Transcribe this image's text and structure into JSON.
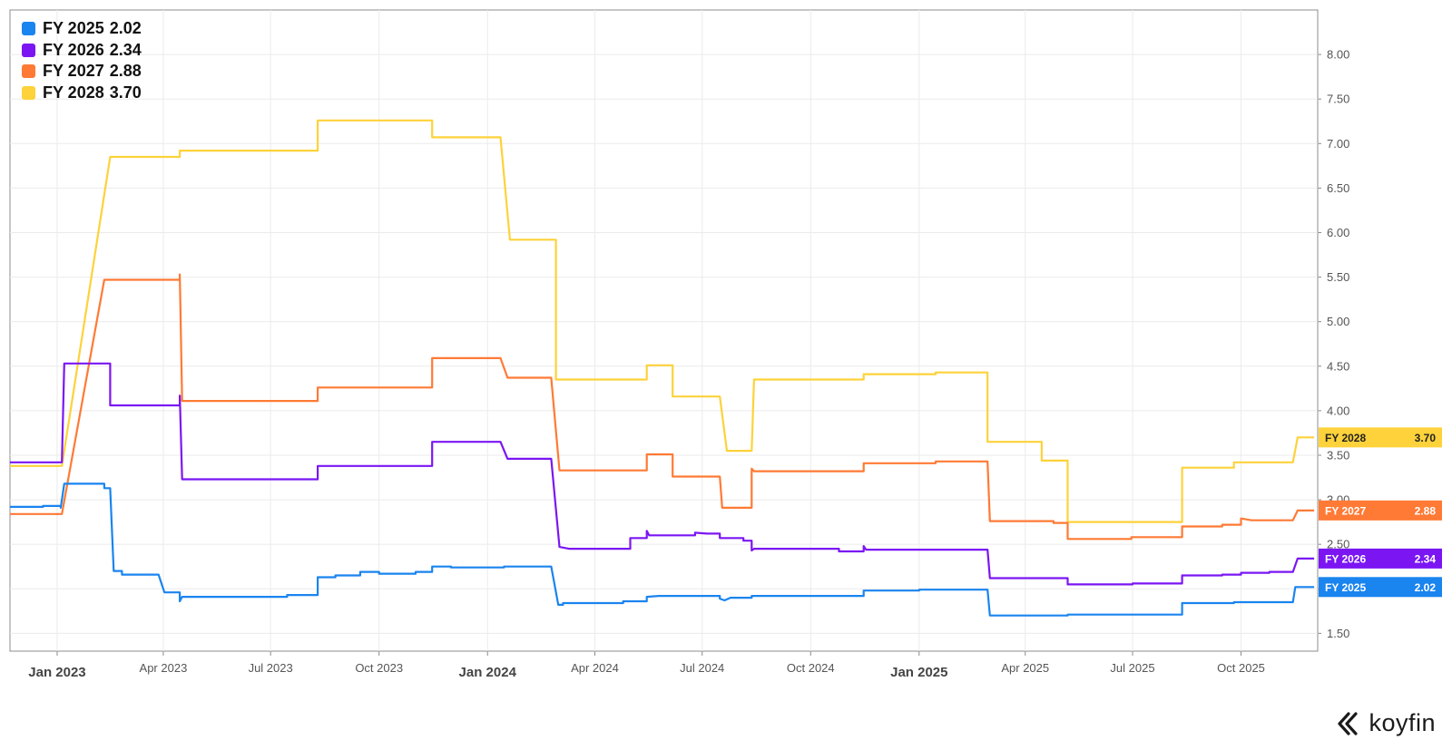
{
  "brand": {
    "logo_text": "koyfin"
  },
  "chart_data": {
    "type": "line",
    "x_axis": {
      "type": "date",
      "range": [
        "2022-11-22",
        "2025-12-05"
      ],
      "ticks": [
        {
          "date": "2023-01-01",
          "label": "Jan 2023",
          "major": true
        },
        {
          "date": "2023-04-01",
          "label": "Apr 2023",
          "major": false
        },
        {
          "date": "2023-07-01",
          "label": "Jul 2023",
          "major": false
        },
        {
          "date": "2023-10-01",
          "label": "Oct 2023",
          "major": false
        },
        {
          "date": "2024-01-01",
          "label": "Jan 2024",
          "major": true
        },
        {
          "date": "2024-04-01",
          "label": "Apr 2024",
          "major": false
        },
        {
          "date": "2024-07-01",
          "label": "Jul 2024",
          "major": false
        },
        {
          "date": "2024-10-01",
          "label": "Oct 2024",
          "major": false
        },
        {
          "date": "2025-01-01",
          "label": "Jan 2025",
          "major": true
        },
        {
          "date": "2025-04-01",
          "label": "Apr 2025",
          "major": false
        },
        {
          "date": "2025-07-01",
          "label": "Jul 2025",
          "major": false
        },
        {
          "date": "2025-10-01",
          "label": "Oct 2025",
          "major": false
        }
      ]
    },
    "y_axis": {
      "position": "right",
      "ylim": [
        1.3,
        8.5
      ],
      "ticks": [
        {
          "value": 1.5,
          "label": "1.50"
        },
        {
          "value": 2.0,
          "label": "2.00"
        },
        {
          "value": 2.5,
          "label": "2.50"
        },
        {
          "value": 3.0,
          "label": "3.00"
        },
        {
          "value": 3.5,
          "label": "3.50"
        },
        {
          "value": 4.0,
          "label": "4.00"
        },
        {
          "value": 4.5,
          "label": "4.50"
        },
        {
          "value": 5.0,
          "label": "5.00"
        },
        {
          "value": 5.5,
          "label": "5.50"
        },
        {
          "value": 6.0,
          "label": "6.00"
        },
        {
          "value": 6.5,
          "label": "6.50"
        },
        {
          "value": 7.0,
          "label": "7.00"
        },
        {
          "value": 7.5,
          "label": "7.50"
        },
        {
          "value": 8.0,
          "label": "8.00"
        }
      ]
    },
    "grid": true,
    "legend_position": "top-left",
    "series": [
      {
        "name": "FY 2028",
        "last_value": "3.70",
        "color": "#FDD23A",
        "points": [
          [
            "2022-11-22",
            3.38
          ],
          [
            "2023-01-05",
            3.38
          ],
          [
            "2023-02-15",
            6.85
          ],
          [
            "2023-04-15",
            6.85
          ],
          [
            "2023-04-15",
            6.92
          ],
          [
            "2023-08-10",
            6.92
          ],
          [
            "2023-08-10",
            7.26
          ],
          [
            "2023-11-15",
            7.26
          ],
          [
            "2023-11-15",
            7.07
          ],
          [
            "2024-01-12",
            7.07
          ],
          [
            "2024-01-20",
            5.92
          ],
          [
            "2024-02-28",
            5.92
          ],
          [
            "2024-02-28",
            4.35
          ],
          [
            "2024-05-15",
            4.35
          ],
          [
            "2024-05-15",
            4.51
          ],
          [
            "2024-06-06",
            4.51
          ],
          [
            "2024-06-06",
            4.16
          ],
          [
            "2024-07-16",
            4.16
          ],
          [
            "2024-07-22",
            3.55
          ],
          [
            "2024-08-12",
            3.55
          ],
          [
            "2024-08-14",
            4.35
          ],
          [
            "2024-11-15",
            4.35
          ],
          [
            "2024-11-15",
            4.41
          ],
          [
            "2025-01-15",
            4.41
          ],
          [
            "2025-01-15",
            4.43
          ],
          [
            "2025-02-28",
            4.43
          ],
          [
            "2025-02-28",
            3.65
          ],
          [
            "2025-04-15",
            3.65
          ],
          [
            "2025-04-15",
            3.44
          ],
          [
            "2025-05-07",
            3.44
          ],
          [
            "2025-05-07",
            2.75
          ],
          [
            "2025-08-12",
            2.75
          ],
          [
            "2025-08-12",
            3.36
          ],
          [
            "2025-09-25",
            3.36
          ],
          [
            "2025-09-25",
            3.42
          ],
          [
            "2025-11-14",
            3.42
          ],
          [
            "2025-11-18",
            3.7
          ],
          [
            "2025-12-02",
            3.7
          ]
        ]
      },
      {
        "name": "FY 2027",
        "last_value": "2.88",
        "color": "#FF7A35",
        "points": [
          [
            "2022-11-22",
            2.84
          ],
          [
            "2023-01-05",
            2.84
          ],
          [
            "2023-02-10",
            5.47
          ],
          [
            "2023-04-15",
            5.47
          ],
          [
            "2023-04-15",
            5.53
          ],
          [
            "2023-04-17",
            4.11
          ],
          [
            "2023-08-10",
            4.11
          ],
          [
            "2023-08-10",
            4.26
          ],
          [
            "2023-11-15",
            4.26
          ],
          [
            "2023-11-15",
            4.59
          ],
          [
            "2024-01-12",
            4.59
          ],
          [
            "2024-01-18",
            4.37
          ],
          [
            "2024-02-24",
            4.37
          ],
          [
            "2024-03-02",
            3.33
          ],
          [
            "2024-05-15",
            3.33
          ],
          [
            "2024-05-15",
            3.51
          ],
          [
            "2024-06-06",
            3.51
          ],
          [
            "2024-06-06",
            3.26
          ],
          [
            "2024-07-16",
            3.26
          ],
          [
            "2024-07-18",
            2.91
          ],
          [
            "2024-08-12",
            2.91
          ],
          [
            "2024-08-12",
            3.35
          ],
          [
            "2024-08-14",
            3.32
          ],
          [
            "2024-11-15",
            3.32
          ],
          [
            "2024-11-15",
            3.41
          ],
          [
            "2025-01-15",
            3.41
          ],
          [
            "2025-01-15",
            3.43
          ],
          [
            "2025-02-28",
            3.43
          ],
          [
            "2025-03-02",
            2.76
          ],
          [
            "2025-04-25",
            2.76
          ],
          [
            "2025-04-25",
            2.74
          ],
          [
            "2025-05-07",
            2.74
          ],
          [
            "2025-05-07",
            2.56
          ],
          [
            "2025-06-30",
            2.56
          ],
          [
            "2025-06-30",
            2.58
          ],
          [
            "2025-08-12",
            2.58
          ],
          [
            "2025-08-12",
            2.7
          ],
          [
            "2025-09-15",
            2.7
          ],
          [
            "2025-09-15",
            2.72
          ],
          [
            "2025-10-01",
            2.72
          ],
          [
            "2025-10-01",
            2.79
          ],
          [
            "2025-10-10",
            2.77
          ],
          [
            "2025-11-14",
            2.77
          ],
          [
            "2025-11-18",
            2.88
          ],
          [
            "2025-12-02",
            2.88
          ]
        ]
      },
      {
        "name": "FY 2026",
        "last_value": "2.34",
        "color": "#7B16F3",
        "points": [
          [
            "2022-11-22",
            3.42
          ],
          [
            "2023-01-05",
            3.42
          ],
          [
            "2023-01-07",
            4.53
          ],
          [
            "2023-02-15",
            4.53
          ],
          [
            "2023-02-15",
            4.06
          ],
          [
            "2023-04-15",
            4.06
          ],
          [
            "2023-04-15",
            4.17
          ],
          [
            "2023-04-17",
            3.23
          ],
          [
            "2023-08-10",
            3.23
          ],
          [
            "2023-08-10",
            3.38
          ],
          [
            "2023-11-15",
            3.38
          ],
          [
            "2023-11-15",
            3.65
          ],
          [
            "2024-01-12",
            3.65
          ],
          [
            "2024-01-18",
            3.46
          ],
          [
            "2024-02-24",
            3.46
          ],
          [
            "2024-03-02",
            2.47
          ],
          [
            "2024-03-10",
            2.45
          ],
          [
            "2024-05-01",
            2.45
          ],
          [
            "2024-05-01",
            2.57
          ],
          [
            "2024-05-15",
            2.57
          ],
          [
            "2024-05-15",
            2.65
          ],
          [
            "2024-05-17",
            2.6
          ],
          [
            "2024-06-25",
            2.6
          ],
          [
            "2024-06-25",
            2.63
          ],
          [
            "2024-07-05",
            2.62
          ],
          [
            "2024-07-16",
            2.62
          ],
          [
            "2024-07-16",
            2.57
          ],
          [
            "2024-08-05",
            2.57
          ],
          [
            "2024-08-05",
            2.54
          ],
          [
            "2024-08-12",
            2.54
          ],
          [
            "2024-08-12",
            2.43
          ],
          [
            "2024-08-14",
            2.45
          ],
          [
            "2024-10-25",
            2.45
          ],
          [
            "2024-10-25",
            2.42
          ],
          [
            "2024-11-15",
            2.42
          ],
          [
            "2024-11-15",
            2.48
          ],
          [
            "2024-11-17",
            2.44
          ],
          [
            "2025-02-28",
            2.44
          ],
          [
            "2025-03-02",
            2.12
          ],
          [
            "2025-05-07",
            2.12
          ],
          [
            "2025-05-07",
            2.05
          ],
          [
            "2025-07-01",
            2.05
          ],
          [
            "2025-07-01",
            2.06
          ],
          [
            "2025-08-12",
            2.06
          ],
          [
            "2025-08-12",
            2.15
          ],
          [
            "2025-09-15",
            2.15
          ],
          [
            "2025-09-15",
            2.16
          ],
          [
            "2025-10-01",
            2.16
          ],
          [
            "2025-10-01",
            2.18
          ],
          [
            "2025-10-25",
            2.18
          ],
          [
            "2025-10-25",
            2.19
          ],
          [
            "2025-11-14",
            2.19
          ],
          [
            "2025-11-18",
            2.34
          ],
          [
            "2025-12-02",
            2.34
          ]
        ]
      },
      {
        "name": "FY 2025",
        "last_value": "2.02",
        "color": "#1A84EF",
        "points": [
          [
            "2022-11-22",
            2.92
          ],
          [
            "2022-12-20",
            2.92
          ],
          [
            "2022-12-20",
            2.93
          ],
          [
            "2023-01-04",
            2.93
          ],
          [
            "2023-01-04",
            2.91
          ],
          [
            "2023-01-07",
            3.18
          ],
          [
            "2023-02-10",
            3.18
          ],
          [
            "2023-02-10",
            3.13
          ],
          [
            "2023-02-15",
            3.13
          ],
          [
            "2023-02-18",
            2.2
          ],
          [
            "2023-02-25",
            2.2
          ],
          [
            "2023-02-25",
            2.16
          ],
          [
            "2023-03-28",
            2.16
          ],
          [
            "2023-04-02",
            1.96
          ],
          [
            "2023-04-15",
            1.96
          ],
          [
            "2023-04-15",
            1.86
          ],
          [
            "2023-04-17",
            1.91
          ],
          [
            "2023-07-15",
            1.91
          ],
          [
            "2023-07-15",
            1.93
          ],
          [
            "2023-08-10",
            1.93
          ],
          [
            "2023-08-10",
            2.13
          ],
          [
            "2023-08-25",
            2.13
          ],
          [
            "2023-08-25",
            2.15
          ],
          [
            "2023-09-15",
            2.15
          ],
          [
            "2023-09-15",
            2.19
          ],
          [
            "2023-10-01",
            2.19
          ],
          [
            "2023-10-01",
            2.17
          ],
          [
            "2023-11-01",
            2.17
          ],
          [
            "2023-11-01",
            2.19
          ],
          [
            "2023-11-15",
            2.19
          ],
          [
            "2023-11-15",
            2.25
          ],
          [
            "2023-12-01",
            2.25
          ],
          [
            "2023-12-01",
            2.24
          ],
          [
            "2024-01-15",
            2.24
          ],
          [
            "2024-01-15",
            2.25
          ],
          [
            "2024-02-24",
            2.25
          ],
          [
            "2024-03-01",
            1.82
          ],
          [
            "2024-03-05",
            1.82
          ],
          [
            "2024-03-05",
            1.84
          ],
          [
            "2024-04-25",
            1.84
          ],
          [
            "2024-04-25",
            1.86
          ],
          [
            "2024-05-15",
            1.86
          ],
          [
            "2024-05-15",
            1.91
          ],
          [
            "2024-05-25",
            1.92
          ],
          [
            "2024-07-16",
            1.92
          ],
          [
            "2024-07-16",
            1.89
          ],
          [
            "2024-07-20",
            1.87
          ],
          [
            "2024-07-25",
            1.9
          ],
          [
            "2024-08-12",
            1.9
          ],
          [
            "2024-08-12",
            1.92
          ],
          [
            "2024-11-15",
            1.92
          ],
          [
            "2024-11-15",
            1.98
          ],
          [
            "2025-01-01",
            1.98
          ],
          [
            "2025-01-01",
            1.99
          ],
          [
            "2025-02-28",
            1.99
          ],
          [
            "2025-03-02",
            1.7
          ],
          [
            "2025-05-07",
            1.7
          ],
          [
            "2025-05-07",
            1.71
          ],
          [
            "2025-08-12",
            1.71
          ],
          [
            "2025-08-12",
            1.84
          ],
          [
            "2025-09-25",
            1.84
          ],
          [
            "2025-09-25",
            1.85
          ],
          [
            "2025-11-14",
            1.85
          ],
          [
            "2025-11-16",
            2.02
          ],
          [
            "2025-12-02",
            2.02
          ]
        ]
      }
    ],
    "legend_order": [
      "FY 2025",
      "FY 2026",
      "FY 2027",
      "FY 2028"
    ]
  }
}
